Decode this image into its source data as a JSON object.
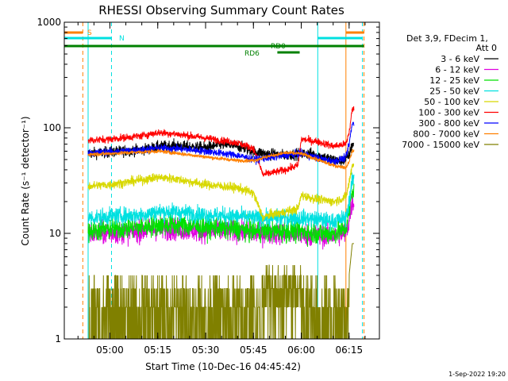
{
  "chart_data": {
    "type": "line",
    "title": "RHESSI Observing Summary Count Rates",
    "xlabel": "Start Time (10-Dec-16 04:45:42)",
    "ylabel": "Count Rate (s⁻¹ detector⁻¹)",
    "yscale": "log",
    "ylim": [
      1,
      1000
    ],
    "xlim": [
      "04:45:42",
      "06:24:30"
    ],
    "x_ticks": [
      "05:00",
      "05:15",
      "05:30",
      "05:45",
      "06:00",
      "06:15"
    ],
    "y_ticks": [
      "1",
      "10",
      "100",
      "1000"
    ],
    "legend": {
      "header": [
        "Det 3,9, FDecim 1,",
        "Att 0"
      ],
      "position": "right",
      "entries": [
        {
          "label": "3 - 6 keV",
          "color": "#000000"
        },
        {
          "label": "6 - 12 keV",
          "color": "#e000e0"
        },
        {
          "label": "12 - 25 keV",
          "color": "#00e000"
        },
        {
          "label": "25 - 50 keV",
          "color": "#00e0e0"
        },
        {
          "label": "50 - 100 keV",
          "color": "#d8d800"
        },
        {
          "label": "100 - 300 keV",
          "color": "#ff0000"
        },
        {
          "label": "300 - 800 keV",
          "color": "#0000ff"
        },
        {
          "label": "800 - 7000 keV",
          "color": "#ff8000"
        },
        {
          "label": "7000 - 15000 keV",
          "color": "#808000"
        }
      ]
    },
    "annotations": {
      "saa_label": "S",
      "night_label": "N",
      "rd0_label": "RD0",
      "rd6_label": "RD6"
    },
    "vertical_lines": [
      {
        "time": "04:45:42",
        "color": "#00e0e0",
        "style": "solid"
      },
      {
        "time": "04:51:30",
        "color": "#ff8000",
        "style": "dashed"
      },
      {
        "time": "04:53:10",
        "color": "#00e0e0",
        "style": "solid"
      },
      {
        "time": "05:00:30",
        "color": "#00e0e0",
        "style": "dashed"
      },
      {
        "time": "06:05:10",
        "color": "#00e0e0",
        "style": "solid"
      },
      {
        "time": "06:14:00",
        "color": "#ff8000",
        "style": "solid"
      },
      {
        "time": "06:19:10",
        "color": "#00e0e0",
        "style": "dashed"
      },
      {
        "time": "06:19:40",
        "color": "#ff8000",
        "style": "dashed"
      }
    ],
    "bars": [
      {
        "name": "S",
        "color": "#ff8000",
        "segments": [
          [
            "04:45:42",
            "04:51:30"
          ],
          [
            "06:14:00",
            "06:19:40"
          ]
        ],
        "level": "top"
      },
      {
        "name": "N",
        "color": "#00e0e0",
        "segments": [
          [
            "04:45:42",
            "05:00:30"
          ],
          [
            "06:05:10",
            "06:19:10"
          ]
        ],
        "level": "second"
      },
      {
        "name": "RD0",
        "color": "#008000",
        "segments": [
          [
            "04:45:42",
            "06:19:40"
          ]
        ],
        "level": "third"
      },
      {
        "name": "RD6",
        "color": "#008000",
        "segments": [
          [
            "05:52:30",
            "05:59:30"
          ]
        ],
        "level": "fourth"
      }
    ],
    "data_range": [
      "04:53:10",
      "06:16:30"
    ],
    "series": [
      {
        "name": "3 - 6 keV",
        "color": "#000000",
        "noise": 0.06,
        "points": [
          [
            "04:53:10",
            57
          ],
          [
            "05:00",
            59
          ],
          [
            "05:10",
            62
          ],
          [
            "05:15",
            66
          ],
          [
            "05:20",
            68
          ],
          [
            "05:25",
            66
          ],
          [
            "05:30",
            65
          ],
          [
            "05:35",
            70
          ],
          [
            "05:40",
            67
          ],
          [
            "05:45",
            60
          ],
          [
            "05:50",
            56
          ],
          [
            "05:55",
            55
          ],
          [
            "06:00",
            57
          ],
          [
            "06:03",
            57
          ],
          [
            "06:08",
            52
          ],
          [
            "06:12",
            48
          ],
          [
            "06:14",
            50
          ],
          [
            "06:15",
            55
          ],
          [
            "06:16",
            70
          ]
        ]
      },
      {
        "name": "6 - 12 keV",
        "color": "#e000e0",
        "noise": 0.12,
        "points": [
          [
            "04:53:10",
            10
          ],
          [
            "05:00",
            10
          ],
          [
            "05:10",
            10.5
          ],
          [
            "05:15",
            11
          ],
          [
            "05:20",
            11
          ],
          [
            "05:30",
            10.5
          ],
          [
            "05:40",
            10.5
          ],
          [
            "05:45",
            10
          ],
          [
            "05:55",
            10
          ],
          [
            "06:00",
            9.8
          ],
          [
            "06:05",
            9.5
          ],
          [
            "06:10",
            9.5
          ],
          [
            "06:14",
            10
          ],
          [
            "06:15",
            13
          ],
          [
            "06:16",
            20
          ]
        ]
      },
      {
        "name": "12 - 25 keV",
        "color": "#00e000",
        "noise": 0.12,
        "points": [
          [
            "04:53:10",
            10.5
          ],
          [
            "05:00",
            11
          ],
          [
            "05:10",
            11.5
          ],
          [
            "05:15",
            12
          ],
          [
            "05:20",
            12
          ],
          [
            "05:30",
            11.5
          ],
          [
            "05:40",
            11
          ],
          [
            "05:45",
            10.5
          ],
          [
            "05:55",
            10.5
          ],
          [
            "06:00",
            10.5
          ],
          [
            "06:05",
            10
          ],
          [
            "06:10",
            10
          ],
          [
            "06:14",
            11
          ],
          [
            "06:15",
            16
          ],
          [
            "06:16",
            25
          ]
        ]
      },
      {
        "name": "25 - 50 keV",
        "color": "#00e0e0",
        "noise": 0.09,
        "points": [
          [
            "04:53:10",
            14
          ],
          [
            "05:00",
            14.5
          ],
          [
            "05:10",
            15
          ],
          [
            "05:15",
            16
          ],
          [
            "05:20",
            16
          ],
          [
            "05:30",
            15
          ],
          [
            "05:40",
            14.5
          ],
          [
            "05:45",
            14
          ],
          [
            "05:55",
            14
          ],
          [
            "06:00",
            14
          ],
          [
            "06:05",
            13.5
          ],
          [
            "06:10",
            13
          ],
          [
            "06:14",
            14
          ],
          [
            "06:15",
            20
          ],
          [
            "06:16",
            32
          ]
        ]
      },
      {
        "name": "50 - 100 keV",
        "color": "#d8d800",
        "noise": 0.05,
        "points": [
          [
            "04:53:10",
            28
          ],
          [
            "05:00",
            29
          ],
          [
            "05:10",
            32
          ],
          [
            "05:15",
            34
          ],
          [
            "05:20",
            33
          ],
          [
            "05:30",
            29
          ],
          [
            "05:40",
            27
          ],
          [
            "05:45",
            24
          ],
          [
            "05:48",
            14
          ],
          [
            "05:50",
            15
          ],
          [
            "05:55",
            16
          ],
          [
            "05:59",
            17
          ],
          [
            "06:00",
            23
          ],
          [
            "06:05",
            21
          ],
          [
            "06:10",
            20
          ],
          [
            "06:14",
            22
          ],
          [
            "06:15",
            30
          ],
          [
            "06:16",
            45
          ]
        ]
      },
      {
        "name": "100 - 300 keV",
        "color": "#ff0000",
        "noise": 0.04,
        "points": [
          [
            "04:53:10",
            76
          ],
          [
            "05:00",
            78
          ],
          [
            "05:10",
            84
          ],
          [
            "05:15",
            90
          ],
          [
            "05:20",
            88
          ],
          [
            "05:30",
            80
          ],
          [
            "05:40",
            72
          ],
          [
            "05:45",
            64
          ],
          [
            "05:48",
            36
          ],
          [
            "05:50",
            37
          ],
          [
            "05:55",
            40
          ],
          [
            "05:59",
            44
          ],
          [
            "06:00",
            78
          ],
          [
            "06:05",
            74
          ],
          [
            "06:10",
            67
          ],
          [
            "06:14",
            70
          ],
          [
            "06:15",
            90
          ],
          [
            "06:16",
            150
          ]
        ]
      },
      {
        "name": "300 - 800 keV",
        "color": "#0000ff",
        "noise": 0.04,
        "points": [
          [
            "04:53:10",
            58
          ],
          [
            "05:00",
            59
          ],
          [
            "05:10",
            62
          ],
          [
            "05:15",
            64
          ],
          [
            "05:20",
            64
          ],
          [
            "05:30",
            60
          ],
          [
            "05:40",
            55
          ],
          [
            "05:45",
            50
          ],
          [
            "05:50",
            52
          ],
          [
            "05:55",
            55
          ],
          [
            "06:00",
            57
          ],
          [
            "06:05",
            52
          ],
          [
            "06:10",
            48
          ],
          [
            "06:14",
            52
          ],
          [
            "06:15",
            70
          ],
          [
            "06:16",
            110
          ]
        ]
      },
      {
        "name": "800 - 7000 keV",
        "color": "#ff8000",
        "noise": 0.02,
        "points": [
          [
            "04:53:10",
            56
          ],
          [
            "05:00",
            57
          ],
          [
            "05:10",
            59
          ],
          [
            "05:15",
            60
          ],
          [
            "05:20",
            58
          ],
          [
            "05:30",
            53
          ],
          [
            "05:40",
            49
          ],
          [
            "05:45",
            49
          ],
          [
            "05:50",
            54
          ],
          [
            "05:55",
            58
          ],
          [
            "06:00",
            57
          ],
          [
            "06:05",
            50
          ],
          [
            "06:10",
            44
          ],
          [
            "06:14",
            42
          ],
          [
            "06:15",
            48
          ],
          [
            "06:16",
            60
          ]
        ]
      },
      {
        "name": "7000 - 15000 keV",
        "color": "#808000",
        "noise": 0.0,
        "points": [
          [
            "04:53:10",
            1.8
          ],
          [
            "05:00",
            2.0
          ],
          [
            "05:10",
            2.5
          ],
          [
            "05:15",
            2.8
          ],
          [
            "05:20",
            2.6
          ],
          [
            "05:30",
            2.2
          ],
          [
            "05:40",
            2.0
          ],
          [
            "05:45",
            2.0
          ],
          [
            "05:50",
            2.8
          ],
          [
            "05:55",
            3.2
          ],
          [
            "06:00",
            3.5
          ],
          [
            "06:05",
            2.4
          ],
          [
            "06:10",
            2.0
          ],
          [
            "06:14",
            2.0
          ],
          [
            "06:15",
            4.0
          ],
          [
            "06:16",
            8.0
          ]
        ]
      }
    ]
  },
  "footer": {
    "date_stamp": "1-Sep-2022 19:20"
  }
}
